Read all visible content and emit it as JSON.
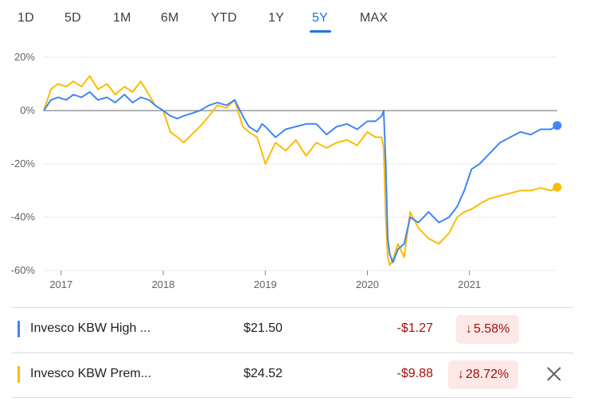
{
  "tabs": [
    {
      "label": "1D",
      "active": false
    },
    {
      "label": "5D",
      "active": false
    },
    {
      "label": "1M",
      "active": false
    },
    {
      "label": "6M",
      "active": false
    },
    {
      "label": "YTD",
      "active": false
    },
    {
      "label": "1Y",
      "active": false
    },
    {
      "label": "5Y",
      "active": true
    },
    {
      "label": "MAX",
      "active": false
    }
  ],
  "legend": [
    {
      "name": "Invesco KBW High ...",
      "price": "$21.50",
      "change": "-$1.27",
      "percent": "5.58%",
      "arrow": "↓",
      "color": "#4285f4"
    },
    {
      "name": "Invesco KBW Prem...",
      "price": "$24.52",
      "change": "-$9.88",
      "percent": "28.72%",
      "arrow": "↓",
      "color": "#fbbc04",
      "removable": true,
      "remove_icon": "close-icon"
    }
  ],
  "chart_data": {
    "type": "line",
    "title": "",
    "xlabel": "",
    "ylabel": "",
    "ylim": [
      -60,
      20
    ],
    "xlim": [
      2016.83,
      2021.86
    ],
    "y_ticks": [
      20,
      0,
      -20,
      -40,
      -60
    ],
    "y_tick_labels": [
      "20%",
      "0%",
      "-20%",
      "-40%",
      "-60%"
    ],
    "x_ticks": [
      2017,
      2018,
      2019,
      2020,
      2021
    ],
    "x_tick_labels": [
      "2017",
      "2018",
      "2019",
      "2020",
      "2021"
    ],
    "baseline": 0,
    "grid": true,
    "series": [
      {
        "name": "Invesco KBW High ...",
        "color": "#4285f4",
        "x": [
          2016.83,
          2016.9,
          2016.97,
          2017.05,
          2017.12,
          2017.2,
          2017.28,
          2017.36,
          2017.45,
          2017.53,
          2017.62,
          2017.7,
          2017.78,
          2017.86,
          2017.92,
          2018.0,
          2018.07,
          2018.14,
          2018.2,
          2018.28,
          2018.36,
          2018.45,
          2018.53,
          2018.62,
          2018.7,
          2018.78,
          2018.84,
          2018.92,
          2018.97,
          2019.0,
          2019.1,
          2019.2,
          2019.3,
          2019.4,
          2019.5,
          2019.6,
          2019.7,
          2019.8,
          2019.9,
          2020.0,
          2020.08,
          2020.14,
          2020.16,
          2020.18,
          2020.2,
          2020.22,
          2020.25,
          2020.3,
          2020.36,
          2020.42,
          2020.5,
          2020.6,
          2020.7,
          2020.8,
          2020.88,
          2020.95,
          2021.02,
          2021.1,
          2021.2,
          2021.3,
          2021.4,
          2021.5,
          2021.6,
          2021.7,
          2021.8,
          2021.86
        ],
        "y": [
          0,
          4,
          5,
          4,
          6,
          5,
          7,
          4,
          5,
          3,
          6,
          3,
          5,
          4,
          2,
          0,
          -2,
          -3,
          -2,
          -1,
          0,
          2,
          3,
          2,
          4,
          -2,
          -6,
          -8,
          -5,
          -6,
          -10,
          -7,
          -6,
          -5,
          -5,
          -9,
          -6,
          -5,
          -7,
          -4,
          -4,
          -2,
          0,
          -20,
          -48,
          -54,
          -57,
          -52,
          -50,
          -40,
          -42,
          -38,
          -42,
          -40,
          -36,
          -30,
          -22,
          -20,
          -16,
          -12,
          -10,
          -8,
          -9,
          -7,
          -7,
          -5.58
        ]
      },
      {
        "name": "Invesco KBW Prem...",
        "color": "#fbbc04",
        "x": [
          2016.83,
          2016.9,
          2016.97,
          2017.05,
          2017.12,
          2017.2,
          2017.28,
          2017.36,
          2017.45,
          2017.53,
          2017.62,
          2017.7,
          2017.78,
          2017.86,
          2017.92,
          2018.0,
          2018.07,
          2018.14,
          2018.2,
          2018.28,
          2018.36,
          2018.45,
          2018.53,
          2018.62,
          2018.7,
          2018.78,
          2018.84,
          2018.92,
          2018.97,
          2019.0,
          2019.1,
          2019.2,
          2019.3,
          2019.4,
          2019.5,
          2019.6,
          2019.7,
          2019.8,
          2019.9,
          2020.0,
          2020.08,
          2020.14,
          2020.16,
          2020.18,
          2020.2,
          2020.22,
          2020.25,
          2020.3,
          2020.36,
          2020.42,
          2020.5,
          2020.6,
          2020.7,
          2020.8,
          2020.88,
          2020.95,
          2021.02,
          2021.1,
          2021.2,
          2021.3,
          2021.4,
          2021.5,
          2021.6,
          2021.7,
          2021.8,
          2021.86
        ],
        "y": [
          0,
          8,
          10,
          9,
          11,
          9,
          13,
          8,
          10,
          6,
          9,
          7,
          11,
          6,
          2,
          0,
          -8,
          -10,
          -12,
          -9,
          -6,
          -2,
          2,
          1,
          4,
          -6,
          -8,
          -10,
          -16,
          -20,
          -12,
          -15,
          -11,
          -17,
          -12,
          -14,
          -12,
          -11,
          -13,
          -8,
          -10,
          -10,
          -14,
          -40,
          -55,
          -58,
          -56,
          -50,
          -55,
          -38,
          -44,
          -48,
          -50,
          -46,
          -40,
          -38,
          -37,
          -35,
          -33,
          -32,
          -31,
          -30,
          -30,
          -29,
          -30,
          -28.72
        ]
      }
    ]
  }
}
